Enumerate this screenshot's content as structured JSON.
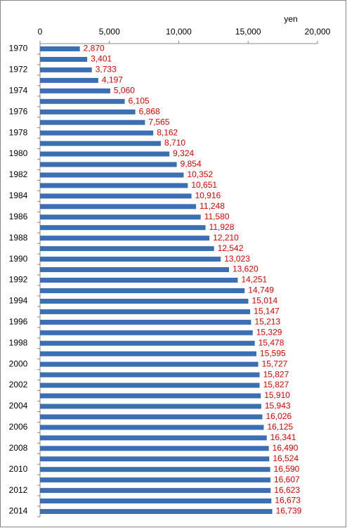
{
  "chart_data": {
    "type": "bar",
    "orientation": "horizontal",
    "x_label": "yen",
    "categories": [
      "1970",
      null,
      "1972",
      null,
      "1974",
      null,
      "1976",
      null,
      "1978",
      null,
      "1980",
      null,
      "1982",
      null,
      "1984",
      null,
      "1986",
      null,
      "1988",
      null,
      "1990",
      null,
      "1992",
      null,
      "1994",
      null,
      "1996",
      null,
      "1998",
      null,
      "2000",
      null,
      "2002",
      null,
      "2004",
      null,
      "2006",
      null,
      "2008",
      null,
      "2010",
      null,
      "2012",
      null,
      "2014"
    ],
    "values": [
      2870,
      3401,
      3733,
      4197,
      5060,
      6105,
      6868,
      7565,
      8162,
      8710,
      9324,
      9854,
      10352,
      10651,
      10916,
      11248,
      11580,
      11928,
      12210,
      12542,
      13023,
      13620,
      14251,
      14749,
      15014,
      15147,
      15213,
      15329,
      15478,
      15595,
      15727,
      15827,
      15827,
      15910,
      15943,
      16026,
      16125,
      16341,
      16490,
      16524,
      16590,
      16607,
      16623,
      16673,
      16739
    ],
    "value_labels": [
      "2,870",
      "3,401",
      "3,733",
      "4,197",
      "5,060",
      "6,105",
      "6,868",
      "7,565",
      "8,162",
      "8,710",
      "9,324",
      "9,854",
      "10,352",
      "10,651",
      "10,916",
      "11,248",
      "11,580",
      "11,928",
      "12,210",
      "12,542",
      "13,023",
      "13,620",
      "14,251",
      "14,749",
      "15,014",
      "15,147",
      "15,213",
      "15,329",
      "15,478",
      "15,595",
      "15,727",
      "15,827",
      "15,827",
      "15,910",
      "15,943",
      "16,026",
      "16,125",
      "16,341",
      "16,490",
      "16,524",
      "16,590",
      "16,607",
      "16,623",
      "16,673",
      "16,739"
    ],
    "color": "#3c6eb4",
    "value_label_color": "#e00000",
    "xlim": [
      0,
      20000
    ],
    "xticks": [
      0,
      {
        "value": 5000,
        "label": "5,000"
      },
      {
        "value": 10000,
        "label": "10,000"
      },
      {
        "value": 15000,
        "label": "15,000"
      },
      {
        "value": 20000,
        "label": "20,000"
      }
    ],
    "grid": false
  }
}
